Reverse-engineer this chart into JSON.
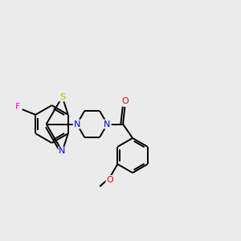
{
  "background_color": "#ebebeb",
  "bond_color": "#000000",
  "atom_colors": {
    "F": "#ff00ff",
    "S": "#d4aa00",
    "N": "#0000ff",
    "O": "#ff0000",
    "C": "#000000"
  },
  "lw": 1.4,
  "fontsize": 7.5,
  "xlim": [
    0,
    10
  ],
  "ylim": [
    0,
    10
  ]
}
